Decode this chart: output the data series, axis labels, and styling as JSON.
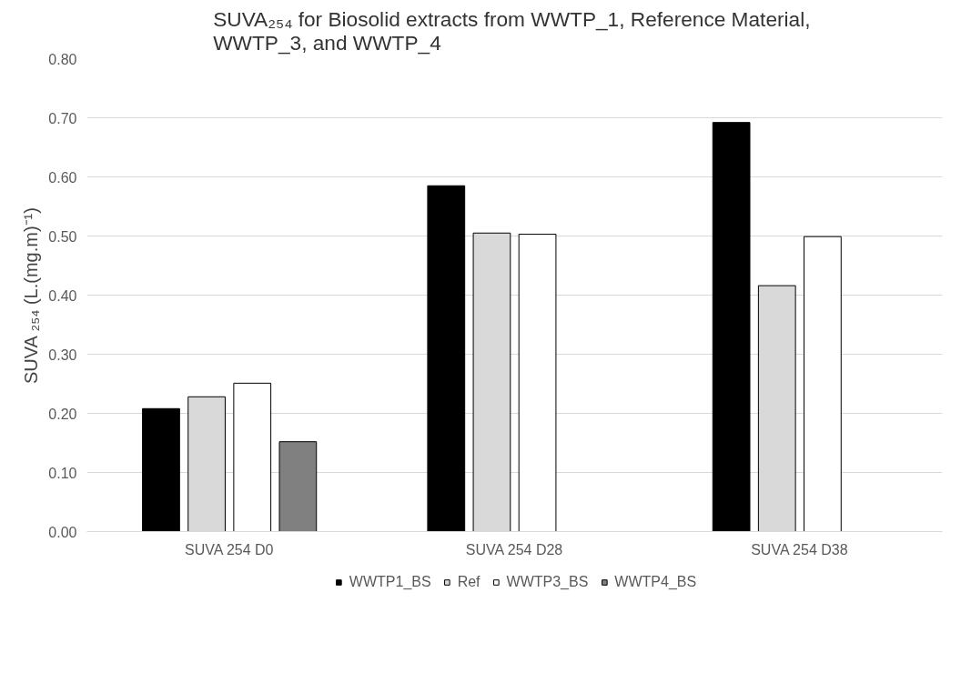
{
  "chart_data": {
    "type": "bar",
    "title": "SUVA₂₅₄  for Biosolid extracts from WWTP_1, Reference Material,\nWWTP_3, and WWTP_4",
    "ylabel": "SUVA ₂₅₄ (L.(mg.m)⁻¹)",
    "categories": [
      "SUVA 254 D0",
      "SUVA 254 D28",
      "SUVA 254 D38"
    ],
    "series": [
      {
        "name": "WWTP1_BS",
        "color": "#000000",
        "values": [
          0.208,
          0.585,
          0.692
        ]
      },
      {
        "name": "Ref",
        "color": "#d9d9d9",
        "values": [
          0.228,
          0.505,
          0.416
        ]
      },
      {
        "name": "WWTP3_BS",
        "color": "#ffffff",
        "values": [
          0.251,
          0.503,
          0.499
        ]
      },
      {
        "name": "WWTP4_BS",
        "color": "#808080",
        "values": [
          0.152,
          null,
          null
        ]
      }
    ],
    "ylim": [
      0,
      0.8
    ],
    "yticks": [
      {
        "value": 0,
        "label": "0.00"
      },
      {
        "value": 0.1,
        "label": "0.10"
      },
      {
        "value": 0.2,
        "label": "0.20"
      },
      {
        "value": 0.3,
        "label": "0.30"
      },
      {
        "value": 0.4,
        "label": "0.40"
      },
      {
        "value": 0.5,
        "label": "0.50"
      },
      {
        "value": 0.6,
        "label": "0.60"
      },
      {
        "value": 0.7,
        "label": "0.70"
      },
      {
        "value": 0.8,
        "label": "0.80"
      }
    ],
    "grid": "y",
    "legend": "bottom"
  }
}
